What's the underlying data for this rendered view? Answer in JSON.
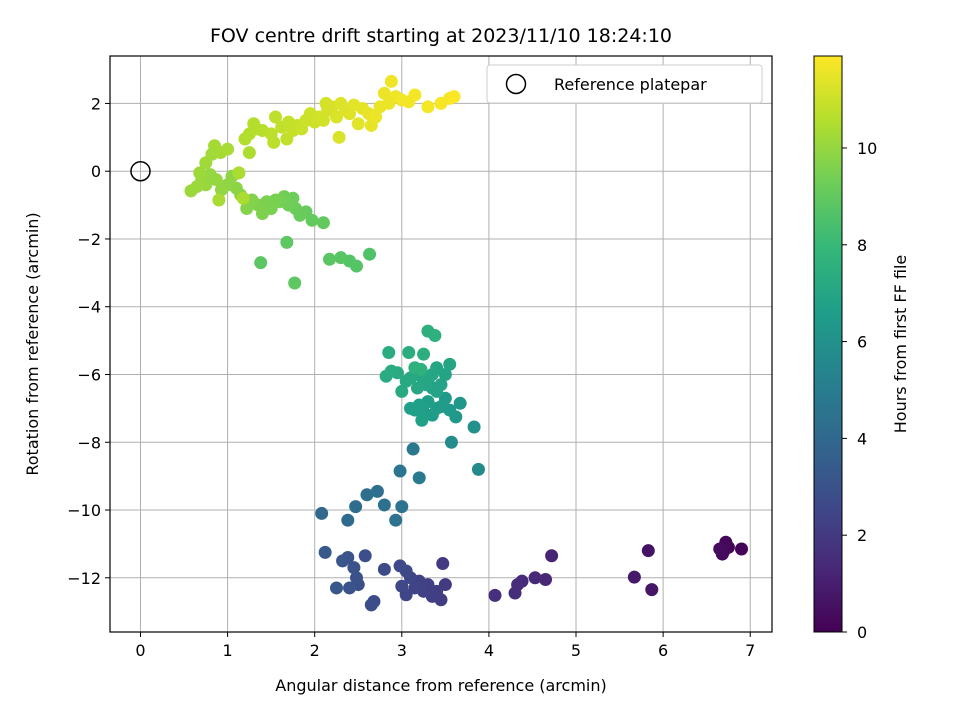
{
  "chart_data": {
    "type": "scatter",
    "title": "FOV centre drift starting at 2023/11/10 18:24:10",
    "xlabel": "Angular distance from reference (arcmin)",
    "ylabel": "Rotation from reference (arcmin)",
    "xlim": [
      -0.35,
      7.25
    ],
    "ylim": [
      -13.6,
      3.4
    ],
    "xticks": [
      0,
      1,
      2,
      3,
      4,
      5,
      6,
      7
    ],
    "yticks": [
      -12,
      -10,
      -8,
      -6,
      -4,
      -2,
      0,
      2
    ],
    "grid": true,
    "legend": {
      "label": "Reference platepar",
      "placement": "top-right",
      "marker": "open-circle"
    },
    "reference_point": {
      "x": 0,
      "y": 0
    },
    "colorbar": {
      "label": "Hours from first FF file",
      "colormap": "viridis",
      "range": [
        0,
        11.9
      ],
      "ticks": [
        0,
        2,
        4,
        6,
        8,
        10
      ]
    },
    "points": [
      {
        "x": 6.9,
        "y": -11.15,
        "c": 0.1
      },
      {
        "x": 6.75,
        "y": -11.1,
        "c": 0.15
      },
      {
        "x": 6.72,
        "y": -10.95,
        "c": 0.2
      },
      {
        "x": 6.68,
        "y": -11.3,
        "c": 0.25
      },
      {
        "x": 6.7,
        "y": -11.2,
        "c": 0.3
      },
      {
        "x": 6.65,
        "y": -11.15,
        "c": 0.35
      },
      {
        "x": 5.83,
        "y": -11.2,
        "c": 0.6
      },
      {
        "x": 5.87,
        "y": -12.35,
        "c": 0.7
      },
      {
        "x": 5.67,
        "y": -11.98,
        "c": 0.8
      },
      {
        "x": 4.72,
        "y": -11.35,
        "c": 1.2
      },
      {
        "x": 4.65,
        "y": -12.05,
        "c": 1.3
      },
      {
        "x": 4.53,
        "y": -12.0,
        "c": 1.35
      },
      {
        "x": 4.38,
        "y": -12.1,
        "c": 1.45
      },
      {
        "x": 4.33,
        "y": -12.2,
        "c": 1.5
      },
      {
        "x": 4.3,
        "y": -12.45,
        "c": 1.55
      },
      {
        "x": 4.07,
        "y": -12.52,
        "c": 1.6
      },
      {
        "x": 3.47,
        "y": -11.58,
        "c": 2.0
      },
      {
        "x": 3.5,
        "y": -12.2,
        "c": 2.05
      },
      {
        "x": 3.45,
        "y": -12.65,
        "c": 2.1
      },
      {
        "x": 3.4,
        "y": -12.4,
        "c": 2.15
      },
      {
        "x": 3.35,
        "y": -12.55,
        "c": 2.2
      },
      {
        "x": 3.3,
        "y": -12.2,
        "c": 2.25
      },
      {
        "x": 3.25,
        "y": -12.4,
        "c": 2.3
      },
      {
        "x": 3.2,
        "y": -12.1,
        "c": 2.35
      },
      {
        "x": 3.15,
        "y": -12.3,
        "c": 2.4
      },
      {
        "x": 3.1,
        "y": -12.0,
        "c": 2.45
      },
      {
        "x": 3.05,
        "y": -12.5,
        "c": 2.5
      },
      {
        "x": 3.0,
        "y": -12.25,
        "c": 2.55
      },
      {
        "x": 3.05,
        "y": -11.8,
        "c": 2.6
      },
      {
        "x": 2.98,
        "y": -11.65,
        "c": 2.65
      },
      {
        "x": 2.8,
        "y": -11.75,
        "c": 2.7
      },
      {
        "x": 2.68,
        "y": -12.7,
        "c": 2.75
      },
      {
        "x": 2.65,
        "y": -12.8,
        "c": 2.8
      },
      {
        "x": 2.58,
        "y": -11.35,
        "c": 2.85
      },
      {
        "x": 2.5,
        "y": -12.2,
        "c": 2.9
      },
      {
        "x": 2.48,
        "y": -12.0,
        "c": 2.95
      },
      {
        "x": 2.45,
        "y": -11.7,
        "c": 3.0
      },
      {
        "x": 2.4,
        "y": -12.3,
        "c": 3.05
      },
      {
        "x": 2.38,
        "y": -11.4,
        "c": 3.1
      },
      {
        "x": 2.32,
        "y": -11.5,
        "c": 3.15
      },
      {
        "x": 2.25,
        "y": -12.3,
        "c": 3.2
      },
      {
        "x": 2.12,
        "y": -11.25,
        "c": 3.3
      },
      {
        "x": 2.08,
        "y": -10.1,
        "c": 4.0
      },
      {
        "x": 2.38,
        "y": -10.3,
        "c": 4.1
      },
      {
        "x": 2.47,
        "y": -9.9,
        "c": 4.2
      },
      {
        "x": 2.6,
        "y": -9.55,
        "c": 4.3
      },
      {
        "x": 2.72,
        "y": -9.45,
        "c": 4.35
      },
      {
        "x": 2.8,
        "y": -9.85,
        "c": 4.4
      },
      {
        "x": 2.93,
        "y": -10.3,
        "c": 4.45
      },
      {
        "x": 3.0,
        "y": -9.9,
        "c": 4.5
      },
      {
        "x": 2.98,
        "y": -8.85,
        "c": 4.7
      },
      {
        "x": 3.13,
        "y": -8.2,
        "c": 4.8
      },
      {
        "x": 3.2,
        "y": -9.05,
        "c": 4.9
      },
      {
        "x": 3.57,
        "y": -8.0,
        "c": 5.8
      },
      {
        "x": 3.88,
        "y": -8.8,
        "c": 5.7
      },
      {
        "x": 3.83,
        "y": -7.55,
        "c": 6.0
      },
      {
        "x": 3.67,
        "y": -6.85,
        "c": 6.3
      },
      {
        "x": 3.62,
        "y": -7.25,
        "c": 6.35
      },
      {
        "x": 3.55,
        "y": -7.05,
        "c": 6.4
      },
      {
        "x": 3.5,
        "y": -6.7,
        "c": 6.45
      },
      {
        "x": 3.45,
        "y": -6.95,
        "c": 6.5
      },
      {
        "x": 3.4,
        "y": -7.0,
        "c": 6.5
      },
      {
        "x": 3.35,
        "y": -7.2,
        "c": 6.55
      },
      {
        "x": 3.3,
        "y": -6.8,
        "c": 6.6
      },
      {
        "x": 3.25,
        "y": -7.1,
        "c": 6.6
      },
      {
        "x": 3.2,
        "y": -6.9,
        "c": 6.65
      },
      {
        "x": 3.15,
        "y": -7.05,
        "c": 6.7
      },
      {
        "x": 3.1,
        "y": -7.0,
        "c": 6.7
      },
      {
        "x": 3.23,
        "y": -7.35,
        "c": 6.75
      },
      {
        "x": 3.35,
        "y": -6.4,
        "c": 6.8
      },
      {
        "x": 3.3,
        "y": -6.2,
        "c": 6.85
      },
      {
        "x": 3.4,
        "y": -6.5,
        "c": 6.9
      },
      {
        "x": 3.45,
        "y": -6.3,
        "c": 6.9
      },
      {
        "x": 3.5,
        "y": -6.0,
        "c": 6.95
      },
      {
        "x": 3.55,
        "y": -5.7,
        "c": 7.0
      },
      {
        "x": 3.4,
        "y": -5.8,
        "c": 7.0
      },
      {
        "x": 3.35,
        "y": -6.0,
        "c": 7.05
      },
      {
        "x": 3.28,
        "y": -6.3,
        "c": 7.05
      },
      {
        "x": 3.22,
        "y": -6.05,
        "c": 7.1
      },
      {
        "x": 3.18,
        "y": -6.4,
        "c": 7.1
      },
      {
        "x": 3.1,
        "y": -6.1,
        "c": 7.15
      },
      {
        "x": 3.05,
        "y": -6.2,
        "c": 7.2
      },
      {
        "x": 3.0,
        "y": -6.5,
        "c": 7.2
      },
      {
        "x": 2.95,
        "y": -5.95,
        "c": 7.25
      },
      {
        "x": 2.88,
        "y": -5.9,
        "c": 7.3
      },
      {
        "x": 2.82,
        "y": -6.05,
        "c": 7.3
      },
      {
        "x": 2.85,
        "y": -5.35,
        "c": 7.35
      },
      {
        "x": 3.08,
        "y": -5.35,
        "c": 7.4
      },
      {
        "x": 3.25,
        "y": -5.4,
        "c": 7.45
      },
      {
        "x": 3.3,
        "y": -4.72,
        "c": 7.5
      },
      {
        "x": 3.38,
        "y": -4.85,
        "c": 7.55
      },
      {
        "x": 3.15,
        "y": -5.8,
        "c": 7.6
      },
      {
        "x": 3.22,
        "y": -5.85,
        "c": 7.6
      },
      {
        "x": 2.63,
        "y": -2.45,
        "c": 8.6
      },
      {
        "x": 2.4,
        "y": -2.65,
        "c": 8.7
      },
      {
        "x": 2.48,
        "y": -2.8,
        "c": 8.7
      },
      {
        "x": 2.3,
        "y": -2.55,
        "c": 8.75
      },
      {
        "x": 2.17,
        "y": -2.6,
        "c": 8.8
      },
      {
        "x": 1.38,
        "y": -2.7,
        "c": 8.85
      },
      {
        "x": 1.77,
        "y": -3.3,
        "c": 8.9
      },
      {
        "x": 1.68,
        "y": -2.1,
        "c": 8.9
      },
      {
        "x": 2.1,
        "y": -1.52,
        "c": 9.0
      },
      {
        "x": 1.97,
        "y": -1.45,
        "c": 9.05
      },
      {
        "x": 1.9,
        "y": -1.2,
        "c": 9.1
      },
      {
        "x": 1.83,
        "y": -1.3,
        "c": 9.15
      },
      {
        "x": 1.78,
        "y": -1.1,
        "c": 9.2
      },
      {
        "x": 1.75,
        "y": -0.8,
        "c": 9.25
      },
      {
        "x": 1.7,
        "y": -1.0,
        "c": 9.3
      },
      {
        "x": 1.65,
        "y": -0.75,
        "c": 9.35
      },
      {
        "x": 1.6,
        "y": -0.9,
        "c": 9.4
      },
      {
        "x": 1.55,
        "y": -0.85,
        "c": 9.45
      },
      {
        "x": 1.5,
        "y": -1.1,
        "c": 9.5
      },
      {
        "x": 1.45,
        "y": -0.9,
        "c": 9.5
      },
      {
        "x": 1.4,
        "y": -1.25,
        "c": 9.55
      },
      {
        "x": 1.35,
        "y": -1.0,
        "c": 9.6
      },
      {
        "x": 1.28,
        "y": -0.85,
        "c": 9.65
      },
      {
        "x": 1.22,
        "y": -1.1,
        "c": 9.7
      },
      {
        "x": 1.15,
        "y": -0.7,
        "c": 9.75
      },
      {
        "x": 1.1,
        "y": -0.5,
        "c": 9.8
      },
      {
        "x": 1.05,
        "y": -0.15,
        "c": 9.85
      },
      {
        "x": 1.0,
        "y": -0.4,
        "c": 9.9
      },
      {
        "x": 0.93,
        "y": -0.55,
        "c": 9.95
      },
      {
        "x": 0.87,
        "y": -0.25,
        "c": 10.0
      },
      {
        "x": 0.8,
        "y": -0.1,
        "c": 10.0
      },
      {
        "x": 0.75,
        "y": -0.4,
        "c": 10.05
      },
      {
        "x": 0.7,
        "y": -0.3,
        "c": 10.05
      },
      {
        "x": 0.65,
        "y": -0.45,
        "c": 10.1
      },
      {
        "x": 0.58,
        "y": -0.58,
        "c": 10.1
      },
      {
        "x": 0.68,
        "y": -0.05,
        "c": 10.15
      },
      {
        "x": 0.75,
        "y": 0.25,
        "c": 10.2
      },
      {
        "x": 0.82,
        "y": 0.5,
        "c": 10.2
      },
      {
        "x": 0.88,
        "y": 0.6,
        "c": 10.25
      },
      {
        "x": 0.85,
        "y": 0.75,
        "c": 10.3
      },
      {
        "x": 0.92,
        "y": 0.55,
        "c": 10.3
      },
      {
        "x": 1.0,
        "y": 0.65,
        "c": 10.35
      },
      {
        "x": 0.9,
        "y": -0.85,
        "c": 10.35
      },
      {
        "x": 1.13,
        "y": -0.05,
        "c": 10.4
      },
      {
        "x": 1.18,
        "y": -0.8,
        "c": 10.4
      },
      {
        "x": 1.25,
        "y": 0.55,
        "c": 10.45
      },
      {
        "x": 1.2,
        "y": 0.95,
        "c": 10.5
      },
      {
        "x": 1.25,
        "y": 1.1,
        "c": 10.55
      },
      {
        "x": 1.33,
        "y": 1.25,
        "c": 10.6
      },
      {
        "x": 1.3,
        "y": 1.4,
        "c": 10.6
      },
      {
        "x": 1.4,
        "y": 1.2,
        "c": 10.65
      },
      {
        "x": 1.5,
        "y": 1.1,
        "c": 10.7
      },
      {
        "x": 1.53,
        "y": 0.85,
        "c": 10.7
      },
      {
        "x": 1.55,
        "y": 1.6,
        "c": 10.75
      },
      {
        "x": 1.62,
        "y": 1.3,
        "c": 10.8
      },
      {
        "x": 1.68,
        "y": 0.95,
        "c": 10.8
      },
      {
        "x": 1.7,
        "y": 1.45,
        "c": 10.85
      },
      {
        "x": 1.75,
        "y": 1.2,
        "c": 10.9
      },
      {
        "x": 1.8,
        "y": 1.35,
        "c": 10.9
      },
      {
        "x": 1.85,
        "y": 1.25,
        "c": 10.95
      },
      {
        "x": 1.9,
        "y": 1.5,
        "c": 11.0
      },
      {
        "x": 1.95,
        "y": 1.7,
        "c": 11.0
      },
      {
        "x": 2.0,
        "y": 1.45,
        "c": 11.05
      },
      {
        "x": 2.05,
        "y": 1.6,
        "c": 11.1
      },
      {
        "x": 2.1,
        "y": 1.5,
        "c": 11.1
      },
      {
        "x": 2.13,
        "y": 2.0,
        "c": 11.15
      },
      {
        "x": 2.15,
        "y": 1.8,
        "c": 11.2
      },
      {
        "x": 2.2,
        "y": 1.9,
        "c": 11.2
      },
      {
        "x": 2.25,
        "y": 1.6,
        "c": 11.25
      },
      {
        "x": 2.28,
        "y": 1.0,
        "c": 11.25
      },
      {
        "x": 2.3,
        "y": 2.0,
        "c": 11.3
      },
      {
        "x": 2.35,
        "y": 1.8,
        "c": 11.3
      },
      {
        "x": 2.4,
        "y": 1.7,
        "c": 11.35
      },
      {
        "x": 2.45,
        "y": 1.95,
        "c": 11.4
      },
      {
        "x": 2.5,
        "y": 1.4,
        "c": 11.4
      },
      {
        "x": 2.55,
        "y": 1.85,
        "c": 11.45
      },
      {
        "x": 2.62,
        "y": 1.7,
        "c": 11.5
      },
      {
        "x": 2.65,
        "y": 1.35,
        "c": 11.5
      },
      {
        "x": 2.7,
        "y": 1.6,
        "c": 11.55
      },
      {
        "x": 2.75,
        "y": 1.9,
        "c": 11.55
      },
      {
        "x": 2.8,
        "y": 2.3,
        "c": 11.6
      },
      {
        "x": 2.85,
        "y": 2.0,
        "c": 11.6
      },
      {
        "x": 2.88,
        "y": 2.65,
        "c": 11.65
      },
      {
        "x": 2.93,
        "y": 2.2,
        "c": 11.65
      },
      {
        "x": 3.0,
        "y": 2.1,
        "c": 11.7
      },
      {
        "x": 3.08,
        "y": 2.05,
        "c": 11.7
      },
      {
        "x": 3.15,
        "y": 2.25,
        "c": 11.72
      },
      {
        "x": 3.3,
        "y": 1.9,
        "c": 11.75
      },
      {
        "x": 3.45,
        "y": 2.0,
        "c": 11.78
      },
      {
        "x": 3.55,
        "y": 2.15,
        "c": 11.8
      },
      {
        "x": 3.6,
        "y": 2.2,
        "c": 11.85
      }
    ]
  }
}
